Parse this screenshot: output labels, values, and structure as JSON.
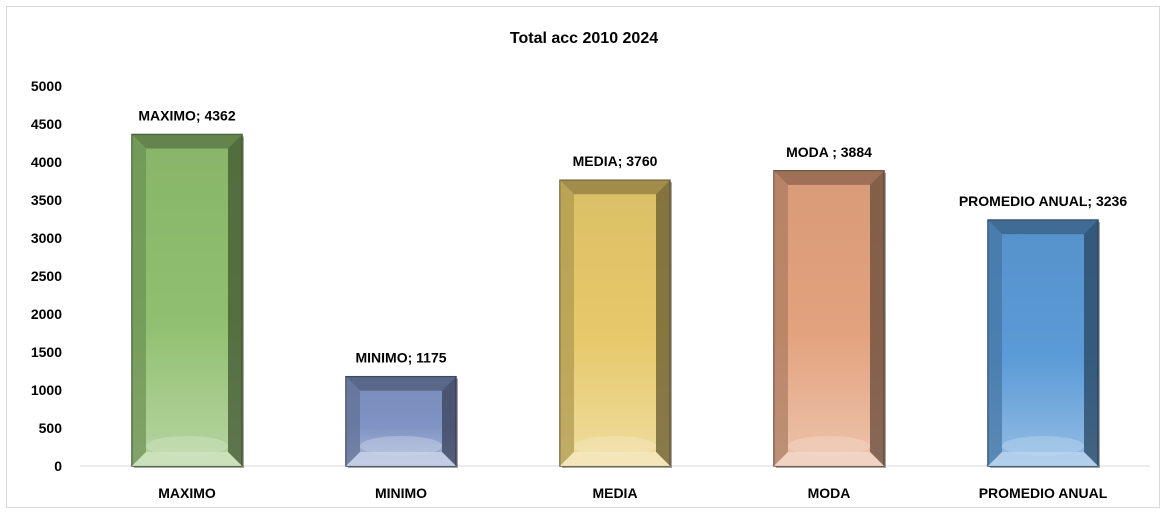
{
  "chart_data": {
    "type": "bar",
    "title": "Total acc 2010 2024",
    "categories": [
      "MAXIMO",
      "MINIMO",
      "MEDIA",
      "MODA",
      "PROMEDIO ANUAL"
    ],
    "values": [
      4362,
      1175,
      3760,
      3884,
      3236
    ],
    "data_labels": [
      "MAXIMO; 4362",
      "MINIMO; 1175",
      "MEDIA; 3760",
      "MODA ; 3884",
      "PROMEDIO ANUAL; 3236"
    ],
    "yticks": [
      "0",
      "500",
      "1000",
      "1500",
      "2000",
      "2500",
      "3000",
      "3500",
      "4000",
      "4500",
      "5000"
    ],
    "ylim": [
      0,
      5000
    ],
    "grid": false,
    "legend": "none",
    "colors": [
      "#8fbf6e",
      "#7f93c4",
      "#e6c96a",
      "#e3a27e",
      "#5a9ad6"
    ]
  }
}
